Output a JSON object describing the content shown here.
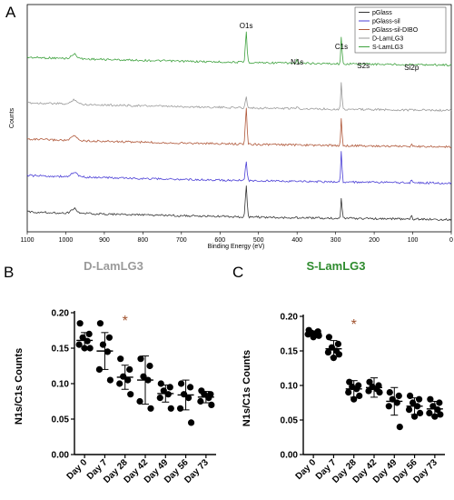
{
  "figure": {
    "panel_labels": [
      "A",
      "B",
      "C"
    ]
  },
  "chart_data": [
    {
      "type": "line",
      "panel": "A",
      "xlabel": "Binding Energy (eV)",
      "ylabel": "Counts",
      "xlim": [
        1100,
        0
      ],
      "x_reversed": true,
      "x_ticks": [
        1100,
        1000,
        900,
        800,
        700,
        600,
        500,
        400,
        300,
        200,
        100,
        0
      ],
      "legend": {
        "placement": "top-right",
        "entries": [
          {
            "name": "pGlass",
            "color": "#333333"
          },
          {
            "name": "pGlass-sil",
            "color": "#4b3fd6"
          },
          {
            "name": "pGlass-sil-DIBO",
            "color": "#b0583a"
          },
          {
            "name": "D-LamLG3",
            "color": "#9a9a9a"
          },
          {
            "name": "S-LamLG3",
            "color": "#3fa23f"
          }
        ]
      },
      "annotations": [
        {
          "text": "O1s",
          "x": 532
        },
        {
          "text": "N1s",
          "x": 400
        },
        {
          "text": "C1s",
          "x": 285
        },
        {
          "text": "S2s",
          "x": 228
        },
        {
          "text": "Si2p",
          "x": 103
        }
      ],
      "series": [
        {
          "name": "S-LamLG3",
          "peaks": [
            {
              "x": 532,
              "height": 0.85
            },
            {
              "x": 285,
              "height": 0.75
            },
            {
              "x": 400,
              "height": 0.1
            }
          ]
        },
        {
          "name": "D-LamLG3",
          "peaks": [
            {
              "x": 532,
              "height": 0.3
            },
            {
              "x": 285,
              "height": 0.8
            },
            {
              "x": 400,
              "height": 0.08
            }
          ]
        },
        {
          "name": "pGlass-sil-DIBO",
          "peaks": [
            {
              "x": 532,
              "height": 1.0
            },
            {
              "x": 285,
              "height": 0.8
            },
            {
              "x": 103,
              "height": 0.1
            }
          ]
        },
        {
          "name": "pGlass-sil",
          "peaks": [
            {
              "x": 532,
              "height": 0.55
            },
            {
              "x": 285,
              "height": 0.9
            },
            {
              "x": 103,
              "height": 0.1
            }
          ]
        },
        {
          "name": "pGlass",
          "peaks": [
            {
              "x": 532,
              "height": 0.9
            },
            {
              "x": 285,
              "height": 0.6
            },
            {
              "x": 103,
              "height": 0.12
            }
          ]
        }
      ]
    },
    {
      "type": "scatter",
      "panel": "B",
      "title": "D-LamLG3",
      "title_color": "#9a9a9a",
      "ylabel": "N1s/C1s Counts",
      "ylim": [
        0,
        0.2
      ],
      "y_ticks": [
        "0.00",
        "0.05",
        "0.10",
        "0.15",
        "0.20"
      ],
      "categories": [
        "Day 0",
        "Day 7",
        "Day 28",
        "Day 42",
        "Day 49",
        "Day 56",
        "Day 73"
      ],
      "significance": {
        "text": "*",
        "category": "Day 28"
      },
      "groups": [
        {
          "points": [
            0.185,
            0.17,
            0.165,
            0.16,
            0.155,
            0.15,
            0.15
          ],
          "mean": 0.161,
          "sd": 0.011
        },
        {
          "points": [
            0.185,
            0.165,
            0.155,
            0.145,
            0.12,
            0.105
          ],
          "mean": 0.146,
          "sd": 0.026
        },
        {
          "points": [
            0.135,
            0.12,
            0.11,
            0.105,
            0.1,
            0.085
          ],
          "mean": 0.109,
          "sd": 0.017
        },
        {
          "points": [
            0.135,
            0.125,
            0.11,
            0.105,
            0.075,
            0.065
          ],
          "mean": 0.105,
          "sd": 0.034
        },
        {
          "points": [
            0.1,
            0.095,
            0.09,
            0.085,
            0.08,
            0.065
          ],
          "mean": 0.086,
          "sd": 0.012
        },
        {
          "points": [
            0.1,
            0.095,
            0.085,
            0.08,
            0.065,
            0.045
          ],
          "mean": 0.084,
          "sd": 0.021
        },
        {
          "points": [
            0.09,
            0.085,
            0.085,
            0.08,
            0.075,
            0.07
          ],
          "mean": 0.081,
          "sd": 0.008
        }
      ]
    },
    {
      "type": "scatter",
      "panel": "C",
      "title": "S-LamLG3",
      "title_color": "#2e8b2e",
      "ylabel": "N1s/C1s Counts",
      "ylim": [
        0,
        0.2
      ],
      "y_ticks": [
        "0.00",
        "0.05",
        "0.10",
        "0.15",
        "0.20"
      ],
      "categories": [
        "Day 0",
        "Day 7",
        "Day 28",
        "Day 42",
        "Day 49",
        "Day 56",
        "Day 73"
      ],
      "significance": {
        "text": "*",
        "category": "Day 28"
      },
      "groups": [
        {
          "points": [
            0.18,
            0.178,
            0.176,
            0.175,
            0.174,
            0.172,
            0.17
          ],
          "mean": 0.175,
          "sd": 0.004
        },
        {
          "points": [
            0.17,
            0.16,
            0.155,
            0.15,
            0.148,
            0.145,
            0.14
          ],
          "mean": 0.153,
          "sd": 0.012
        },
        {
          "points": [
            0.105,
            0.1,
            0.098,
            0.095,
            0.09,
            0.085,
            0.08
          ],
          "mean": 0.095,
          "sd": 0.012
        },
        {
          "points": [
            0.105,
            0.1,
            0.098,
            0.095,
            0.092,
            0.09
          ],
          "mean": 0.097,
          "sd": 0.014
        },
        {
          "points": [
            0.09,
            0.085,
            0.08,
            0.075,
            0.07,
            0.04
          ],
          "mean": 0.077,
          "sd": 0.02
        },
        {
          "points": [
            0.085,
            0.08,
            0.075,
            0.07,
            0.065,
            0.06,
            0.055
          ],
          "mean": 0.07,
          "sd": 0.012
        },
        {
          "points": [
            0.08,
            0.075,
            0.07,
            0.065,
            0.06,
            0.058,
            0.055
          ],
          "mean": 0.066,
          "sd": 0.011
        }
      ]
    }
  ]
}
